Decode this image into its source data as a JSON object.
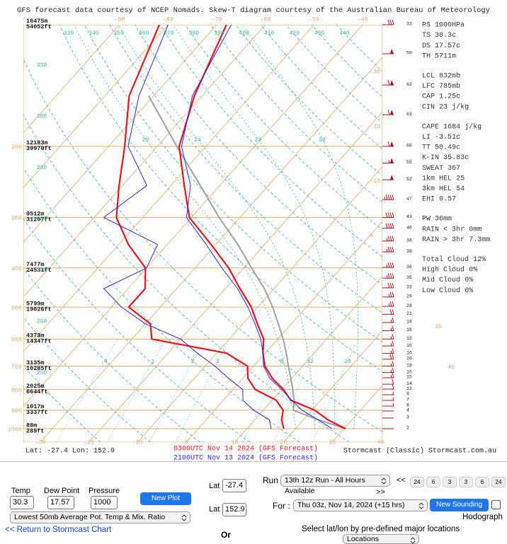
{
  "diagram": {
    "title": "GFS forecast data courtesy of NCEP Nomads.  Skew-T diagram courtesy of the Australian Bureau of Meteorology",
    "plim": [
      1080,
      100
    ],
    "pressure_ticks": [
      1000,
      900,
      800,
      700,
      600,
      500,
      400,
      300,
      200
    ],
    "height_labels": [
      {
        "pressure": 100,
        "m": "16475m",
        "ft": "54052ft"
      },
      {
        "pressure": 200,
        "m": "12183m",
        "ft": "39970ft"
      },
      {
        "pressure": 300,
        "m": "9512m",
        "ft": "31207ft"
      },
      {
        "pressure": 400,
        "m": "7477m",
        "ft": "24531ft"
      },
      {
        "pressure": 500,
        "m": "5799m",
        "ft": "19026ft"
      },
      {
        "pressure": 600,
        "m": "4373m",
        "ft": "14347ft"
      },
      {
        "pressure": 700,
        "m": "3135m",
        "ft": "10285ft"
      },
      {
        "pressure": 800,
        "m": "2025m",
        "ft": "6644ft"
      },
      {
        "pressure": 900,
        "m": "1017m",
        "ft": "3337ft"
      },
      {
        "pressure": 1000,
        "m": "88m",
        "ft": "289ft"
      }
    ],
    "temp_ticks_bottom": [
      -30,
      -20,
      -10,
      0,
      10,
      20,
      30,
      40
    ],
    "temp_ticks_top": [
      -90,
      -80,
      -70,
      -60,
      -50,
      -40
    ],
    "temp_ticks_right": [
      -30,
      -20,
      -10,
      0,
      30,
      40
    ],
    "theta_labels_top": [
      330,
      340,
      350,
      360,
      370,
      380,
      390,
      400,
      410,
      420,
      430,
      440
    ],
    "theta_labels_left": [
      310,
      300,
      290,
      280,
      270,
      260,
      250
    ],
    "theta_w_labels": [
      20,
      24,
      28,
      32
    ],
    "mixing_ratio_labels": [
      {
        "value": 0.4,
        "label": ".4"
      },
      1,
      2,
      3,
      8,
      12,
      20
    ],
    "pressures": [
      1000,
      950,
      900,
      850,
      800,
      750,
      700,
      650,
      600,
      550,
      500,
      450,
      400,
      350,
      300,
      250,
      200,
      150,
      100
    ],
    "series": [
      {
        "name": "0300UTC Nov 14 2024 (GFS Forecast)",
        "color": "#e8141c",
        "temperature": [
          30.3,
          25,
          20.6,
          13.8,
          10.4,
          6,
          2.3,
          -0.5,
          -2.9,
          -7,
          -11.3,
          -17,
          -23.1,
          -31,
          -40.4,
          -47.3,
          -55.5,
          -61.6,
          -68
        ],
        "dewpoint": [
          17.6,
          15.5,
          14.1,
          10.8,
          4.6,
          1,
          -1.3,
          -8,
          -25.9,
          -29,
          -36.5,
          -36.5,
          -40.2,
          -48,
          -55.4,
          -60.7,
          -66.7,
          -75,
          -81.8
        ]
      },
      {
        "name": "2100UTC Nov 13 2024 (GFS Forecast)",
        "color": "#2a2ae0",
        "temperature": [
          27.5,
          23,
          18,
          14,
          10,
          5.5,
          2,
          -0.5,
          -3.5,
          -7.5,
          -12,
          -17.5,
          -24.5,
          -32,
          -41,
          -46,
          -55,
          -62,
          -67
        ],
        "dewpoint": [
          15,
          13,
          8,
          4,
          2,
          -3,
          -8,
          -14,
          -20,
          -30,
          -38,
          -45,
          -40,
          -42,
          -58,
          -55,
          -66,
          -73,
          -80
        ]
      }
    ],
    "parcel": {
      "color": "#a0a0a0",
      "temperature": [
        30.3,
        23,
        16.2,
        14.5,
        12.3,
        9.8,
        7.1,
        4.3,
        1.1,
        -2.7,
        -6.9,
        -12,
        -18.4,
        -25.5,
        -34.3,
        -44,
        -56,
        -71,
        null
      ]
    },
    "wind": {
      "pressures": [
        100,
        118,
        141,
        167,
        200,
        220,
        242,
        271,
        300,
        319,
        343,
        365,
        399,
        424,
        448,
        472,
        498,
        521,
        546,
        572,
        600,
        624,
        651,
        673,
        700,
        726,
        748,
        776,
        798,
        824,
        851,
        879,
        904,
        941,
        1000
      ],
      "speeds": [
        33,
        50,
        62,
        63,
        60,
        55,
        52,
        47,
        43,
        40,
        38,
        38,
        36,
        35,
        33,
        29,
        28,
        21,
        18,
        18,
        15,
        16,
        16,
        20,
        18,
        16,
        15,
        14,
        12,
        9,
        7,
        6,
        4,
        3,
        2
      ]
    },
    "indices": [
      [
        {
          "label": "PS",
          "value": "1000HPa"
        },
        {
          "label": "TS",
          "value": "30.3c"
        },
        {
          "label": "DS",
          "value": "17.57c"
        },
        {
          "label": "TH",
          "value": "5711m"
        }
      ],
      [
        {
          "label": "LCL",
          "value": "832mb"
        },
        {
          "label": "LFC",
          "value": "785mb"
        },
        {
          "label": "CAP",
          "value": "1.25c"
        },
        {
          "label": "CIN",
          "value": "23 j/kg"
        }
      ],
      [
        {
          "label": "CAPE",
          "value": "1684 j/kg"
        },
        {
          "label": "LI",
          "value": "-3.51c"
        },
        {
          "label": "TT",
          "value": "50.49c"
        },
        {
          "label": "K-IN",
          "value": "35.83c"
        },
        {
          "label": "SWEAT",
          "value": "367"
        },
        {
          "label": "1km HEL",
          "value": "25"
        },
        {
          "label": "3km HEL",
          "value": "54"
        },
        {
          "label": "EHI",
          "value": "0.57"
        }
      ],
      [
        {
          "label": "PW",
          "value": "36mm"
        },
        {
          "label": "RAIN < 3hr",
          "value": "0mm"
        },
        {
          "label": "RAIN > 3hr",
          "value": "7.3mm"
        }
      ],
      [
        {
          "label": "Total Cloud",
          "value": "12%"
        },
        {
          "label": "High Cloud",
          "value": "0%"
        },
        {
          "label": "Mid Cloud",
          "value": "0%"
        },
        {
          "label": "Low Cloud",
          "value": "0%"
        }
      ]
    ],
    "location": "Lat: -27.4  Lon: 152.9",
    "credit": "Stormcast (Classic) Stormcast.com.au"
  },
  "form": {
    "temp_label": "Temp",
    "temp_value": "30.3",
    "dew_label": "Dew Point",
    "dew_value": "17.57",
    "pressure_label": "Pressure",
    "pressure_value": "1000",
    "new_plot": "New Plot",
    "method": "Lowest 50mb Average Pot. Temp & Mix. Ratio",
    "return_link": "<< Return to Stormcast Chart",
    "lat_label": "Lat",
    "lat_value": "-27.4",
    "lon_label": "Lat",
    "lon_value": "152.9",
    "or": "Or",
    "run_label": "Run",
    "run_value": "13th 12z Run - All Hours Available",
    "back": "<<",
    "back_steps": [
      24,
      6,
      3
    ],
    "separator": "-",
    "forward_steps": [
      3,
      6,
      24
    ],
    "forward": ">>",
    "for_label": "For :",
    "for_value": "Thu 03z, Nov 14, 2024 (+15 hrs)",
    "new_sounding": "New Sounding",
    "hodograph": "Hodograph",
    "locations_prompt": "Select lat/lon by pre-defined major locations",
    "locations_value": "Locations"
  }
}
